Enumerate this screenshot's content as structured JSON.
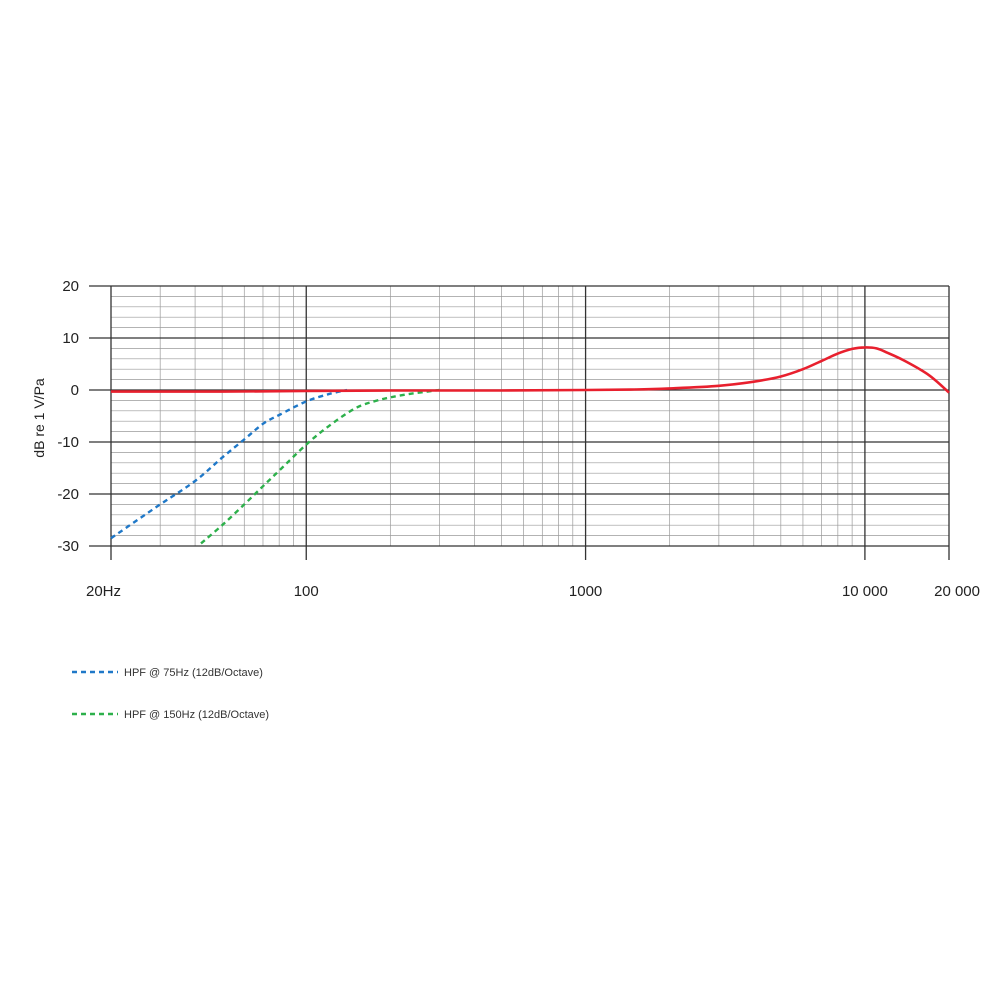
{
  "chart_data": {
    "type": "line",
    "title": "",
    "xlabel": "",
    "ylabel": "dB re 1 V/Pa",
    "x_scale": "log",
    "xlim": [
      20,
      20000
    ],
    "ylim": [
      -30,
      20
    ],
    "grid": true,
    "x_ticks": [
      {
        "value": 20,
        "label": "20Hz"
      },
      {
        "value": 100,
        "label": "100"
      },
      {
        "value": 1000,
        "label": "1000"
      },
      {
        "value": 10000,
        "label": "10 000"
      },
      {
        "value": 20000,
        "label": "20 000"
      }
    ],
    "y_ticks": [
      {
        "value": 20,
        "label": "20"
      },
      {
        "value": 10,
        "label": "10"
      },
      {
        "value": 0,
        "label": "0"
      },
      {
        "value": -10,
        "label": "-10"
      },
      {
        "value": -20,
        "label": "-20"
      },
      {
        "value": -30,
        "label": "-30"
      }
    ],
    "legend_position": "bottom-left",
    "series": [
      {
        "name": "",
        "color": "#e8202e",
        "style": "solid",
        "x": [
          20,
          50,
          100,
          200,
          500,
          1000,
          1500,
          2000,
          3000,
          4000,
          5000,
          6000,
          7000,
          8000,
          9000,
          10000,
          11000,
          12000,
          14000,
          17000,
          20000
        ],
        "y": [
          -0.3,
          -0.3,
          -0.2,
          -0.1,
          -0.1,
          0,
          0.1,
          0.3,
          0.8,
          1.6,
          2.6,
          4,
          5.6,
          7,
          7.9,
          8.2,
          8,
          7.2,
          5.5,
          2.8,
          -0.5
        ]
      },
      {
        "name": "HPF @ 75Hz (12dB/Octave)",
        "color": "#1f78c8",
        "style": "dashed",
        "x": [
          20,
          30,
          40,
          50,
          60,
          70,
          80,
          100,
          120,
          140
        ],
        "y": [
          -28.5,
          -22,
          -17.5,
          -13,
          -9.5,
          -6.5,
          -4.8,
          -2.2,
          -0.8,
          0
        ]
      },
      {
        "name": "HPF @ 150Hz (12dB/Octave)",
        "color": "#2db04b",
        "style": "dashed",
        "x": [
          42,
          50,
          60,
          70,
          80,
          100,
          120,
          150,
          180,
          220,
          280,
          300
        ],
        "y": [
          -29.5,
          -26,
          -22,
          -18.5,
          -15.5,
          -10.5,
          -7,
          -3.5,
          -2,
          -1,
          -0.2,
          0
        ]
      }
    ]
  }
}
